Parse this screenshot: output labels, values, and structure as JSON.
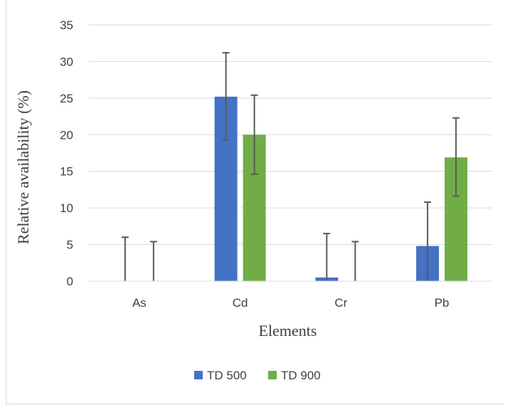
{
  "chart_data": {
    "type": "bar",
    "title": "",
    "xlabel": "Elements",
    "ylabel": "Relative availability (%)",
    "ylim": [
      0,
      35
    ],
    "yticks": [
      0,
      5,
      10,
      15,
      20,
      25,
      30,
      35
    ],
    "categories": [
      "As",
      "Cd",
      "Cr",
      "Pb"
    ],
    "grid": true,
    "legend_position": "bottom",
    "series": [
      {
        "name": "TD 500",
        "color": "#4472c4",
        "values": [
          0,
          25.2,
          0.5,
          4.8
        ],
        "error_upper": [
          6,
          31.2,
          6.5,
          10.8
        ],
        "error_lower": [
          0,
          19.3,
          0,
          0
        ]
      },
      {
        "name": "TD 900",
        "color": "#70ad47",
        "values": [
          0,
          20,
          0,
          16.9
        ],
        "error_upper": [
          5.4,
          25.4,
          5.4,
          22.3
        ],
        "error_lower": [
          0,
          14.6,
          0,
          11.6
        ]
      }
    ]
  }
}
